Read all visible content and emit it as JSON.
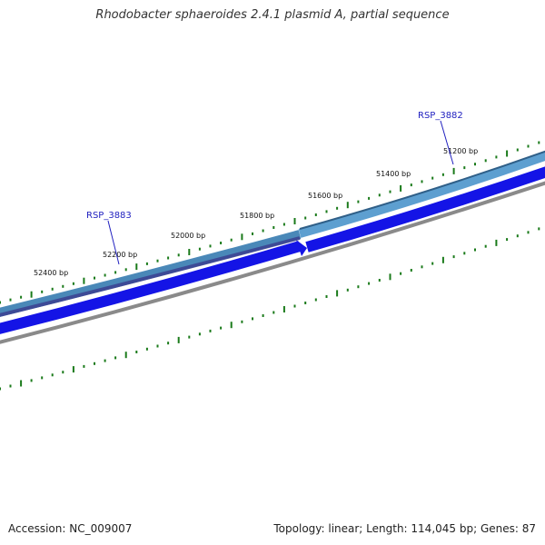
{
  "title": "Rhodobacter sphaeroides 2.4.1 plasmid A, partial sequence",
  "accession": "Accession: NC_009007",
  "summary": "Topology: linear; Length: 114,045 bp; Genes: 87",
  "colors": {
    "tick": "#1a7a1a",
    "gene_label": "#1f1fbf",
    "gene_upper_a": "#5d9fd0",
    "gene_upper_b": "#4a88b8",
    "gene_upper_dark": "#3b3f8f",
    "gene_lower": "#1414e6",
    "backbone": "#8a8a8a"
  },
  "bp_labels": [
    {
      "name": "bp-label-52400",
      "text": "52400 bp"
    },
    {
      "name": "bp-label-52200",
      "text": "52200 bp"
    },
    {
      "name": "bp-label-52000",
      "text": "52000 bp"
    },
    {
      "name": "bp-label-51800",
      "text": "51800 bp"
    },
    {
      "name": "bp-label-51600",
      "text": "51600 bp"
    },
    {
      "name": "bp-label-51400",
      "text": "51400 bp"
    },
    {
      "name": "bp-label-51200",
      "text": "51200 bp"
    }
  ],
  "genes": [
    {
      "name": "gene-label-rsp-3883",
      "text": "RSP_3883"
    },
    {
      "name": "gene-label-rsp-3882",
      "text": "RSP_3882"
    }
  ]
}
